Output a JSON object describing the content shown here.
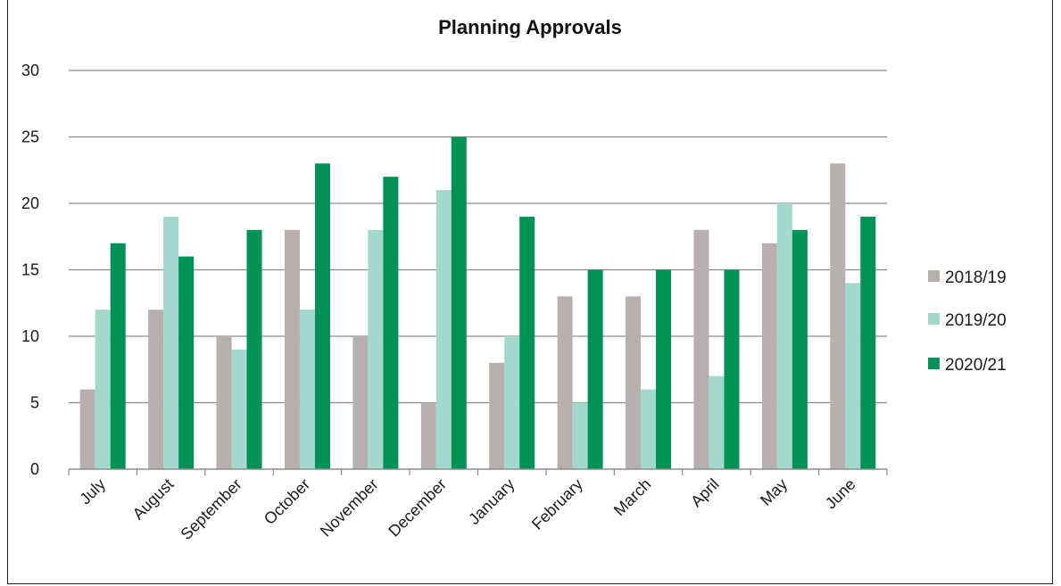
{
  "chart_data": {
    "type": "bar",
    "title": "Planning Approvals",
    "xlabel": "",
    "ylabel": "",
    "ylim": [
      0,
      30
    ],
    "yticks": [
      0,
      5,
      10,
      15,
      20,
      25,
      30
    ],
    "grid": "horizontal",
    "legend_position": "right",
    "categories": [
      "July",
      "August",
      "September",
      "October",
      "November",
      "December",
      "January",
      "February",
      "March",
      "April",
      "May",
      "June"
    ],
    "series": [
      {
        "name": "2018/19",
        "color": "#b8b0ae",
        "values": [
          6,
          12,
          10,
          18,
          10,
          5,
          8,
          13,
          13,
          18,
          17,
          23
        ]
      },
      {
        "name": "2019/20",
        "color": "#a3d9cc",
        "values": [
          12,
          19,
          9,
          12,
          18,
          21,
          10,
          5,
          6,
          7,
          20,
          14
        ]
      },
      {
        "name": "2020/21",
        "color": "#009156",
        "values": [
          17,
          16,
          18,
          23,
          22,
          25,
          19,
          15,
          15,
          15,
          18,
          19
        ]
      }
    ]
  }
}
